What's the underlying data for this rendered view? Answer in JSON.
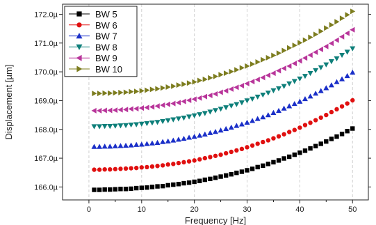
{
  "chart_data": {
    "type": "scatter",
    "title": "",
    "xlabel": "Frequency [Hz]",
    "ylabel": "Displacement [µm]",
    "xlim": [
      -5,
      53
    ],
    "ylim": [
      165.55,
      172.35
    ],
    "x_ticks": [
      0,
      10,
      20,
      30,
      40,
      50
    ],
    "x_tick_labels": [
      "0",
      "10",
      "20",
      "30",
      "40",
      "50"
    ],
    "y_ticks": [
      166,
      167,
      168,
      169,
      170,
      171,
      172
    ],
    "y_tick_labels": [
      "166.0µ",
      "167.0µ",
      "168.0µ",
      "169.0µ",
      "170.0µ",
      "171.0µ",
      "172.0µ"
    ],
    "legend_position": "top-left",
    "grid": "dashed-vertical-major",
    "x": [
      1,
      2,
      3,
      4,
      5,
      6,
      7,
      8,
      9,
      10,
      11,
      12,
      13,
      14,
      15,
      16,
      17,
      18,
      19,
      20,
      21,
      22,
      23,
      24,
      25,
      26,
      27,
      28,
      29,
      30,
      31,
      32,
      33,
      34,
      35,
      36,
      37,
      38,
      39,
      40,
      41,
      42,
      43,
      44,
      45,
      46,
      47,
      48,
      49,
      50
    ],
    "series": [
      {
        "name": "BW 5",
        "marker": "square",
        "color": "#000000",
        "values": [
          165.9,
          165.9,
          165.91,
          165.91,
          165.92,
          165.93,
          165.93,
          165.94,
          165.96,
          165.97,
          165.98,
          166.0,
          166.02,
          166.03,
          166.06,
          166.08,
          166.1,
          166.13,
          166.15,
          166.18,
          166.21,
          166.25,
          166.28,
          166.32,
          166.36,
          166.4,
          166.44,
          166.49,
          166.53,
          166.58,
          166.63,
          166.69,
          166.74,
          166.8,
          166.86,
          166.92,
          166.99,
          167.05,
          167.12,
          167.19,
          167.26,
          167.34,
          167.42,
          167.5,
          167.58,
          167.67,
          167.75,
          167.84,
          167.94,
          168.03
        ]
      },
      {
        "name": "BW 6",
        "marker": "circle",
        "color": "#e01010",
        "values": [
          166.6,
          166.6,
          166.61,
          166.61,
          166.62,
          166.63,
          166.64,
          166.65,
          166.66,
          166.68,
          166.69,
          166.71,
          166.73,
          166.75,
          166.78,
          166.8,
          166.83,
          166.86,
          166.89,
          166.92,
          166.96,
          167.0,
          167.04,
          167.08,
          167.12,
          167.17,
          167.22,
          167.27,
          167.32,
          167.38,
          167.44,
          167.5,
          167.56,
          167.62,
          167.69,
          167.76,
          167.83,
          167.91,
          167.98,
          168.06,
          168.15,
          168.23,
          168.32,
          168.41,
          168.5,
          168.6,
          168.7,
          168.8,
          168.9,
          169.01
        ]
      },
      {
        "name": "BW 7",
        "marker": "triangle-up",
        "color": "#1a2fc8",
        "values": [
          167.4,
          167.4,
          167.41,
          167.41,
          167.42,
          167.43,
          167.44,
          167.45,
          167.47,
          167.48,
          167.5,
          167.52,
          167.54,
          167.57,
          167.59,
          167.62,
          167.65,
          167.68,
          167.72,
          167.75,
          167.79,
          167.83,
          167.88,
          167.92,
          167.97,
          168.02,
          168.07,
          168.13,
          168.18,
          168.24,
          168.3,
          168.37,
          168.43,
          168.5,
          168.58,
          168.65,
          168.73,
          168.81,
          168.89,
          168.97,
          169.06,
          169.15,
          169.25,
          169.34,
          169.44,
          169.54,
          169.65,
          169.75,
          169.86,
          169.98
        ]
      },
      {
        "name": "BW 8",
        "marker": "triangle-down",
        "color": "#0e7f7a",
        "values": [
          168.1,
          168.1,
          168.11,
          168.11,
          168.12,
          168.13,
          168.14,
          168.16,
          168.17,
          168.19,
          168.21,
          168.23,
          168.25,
          168.28,
          168.31,
          168.34,
          168.37,
          168.4,
          168.44,
          168.48,
          168.52,
          168.56,
          168.61,
          168.66,
          168.71,
          168.76,
          168.82,
          168.87,
          168.93,
          169.0,
          169.06,
          169.13,
          169.2,
          169.27,
          169.35,
          169.42,
          169.5,
          169.59,
          169.67,
          169.76,
          169.85,
          169.95,
          170.05,
          170.15,
          170.25,
          170.36,
          170.46,
          170.58,
          170.69,
          170.81
        ]
      },
      {
        "name": "BW 9",
        "marker": "triangle-left",
        "color": "#b8359a",
        "values": [
          168.65,
          168.65,
          168.66,
          168.66,
          168.67,
          168.68,
          168.69,
          168.71,
          168.72,
          168.74,
          168.76,
          168.78,
          168.81,
          168.84,
          168.87,
          168.9,
          168.93,
          168.97,
          169.01,
          169.05,
          169.09,
          169.14,
          169.18,
          169.23,
          169.29,
          169.34,
          169.4,
          169.46,
          169.52,
          169.59,
          169.66,
          169.73,
          169.8,
          169.88,
          169.95,
          170.04,
          170.12,
          170.2,
          170.29,
          170.38,
          170.48,
          170.58,
          170.68,
          170.78,
          170.88,
          170.99,
          171.1,
          171.22,
          171.34,
          171.46
        ]
      },
      {
        "name": "BW 10",
        "marker": "triangle-right",
        "color": "#7c7c1e",
        "values": [
          169.25,
          169.25,
          169.26,
          169.26,
          169.27,
          169.28,
          169.29,
          169.31,
          169.32,
          169.34,
          169.36,
          169.39,
          169.41,
          169.44,
          169.47,
          169.5,
          169.54,
          169.57,
          169.61,
          169.65,
          169.7,
          169.74,
          169.79,
          169.84,
          169.9,
          169.95,
          170.01,
          170.07,
          170.14,
          170.2,
          170.27,
          170.34,
          170.42,
          170.49,
          170.57,
          170.65,
          170.74,
          170.83,
          170.92,
          171.01,
          171.1,
          171.2,
          171.3,
          171.41,
          171.52,
          171.63,
          171.74,
          171.86,
          171.98,
          172.1
        ]
      }
    ]
  }
}
